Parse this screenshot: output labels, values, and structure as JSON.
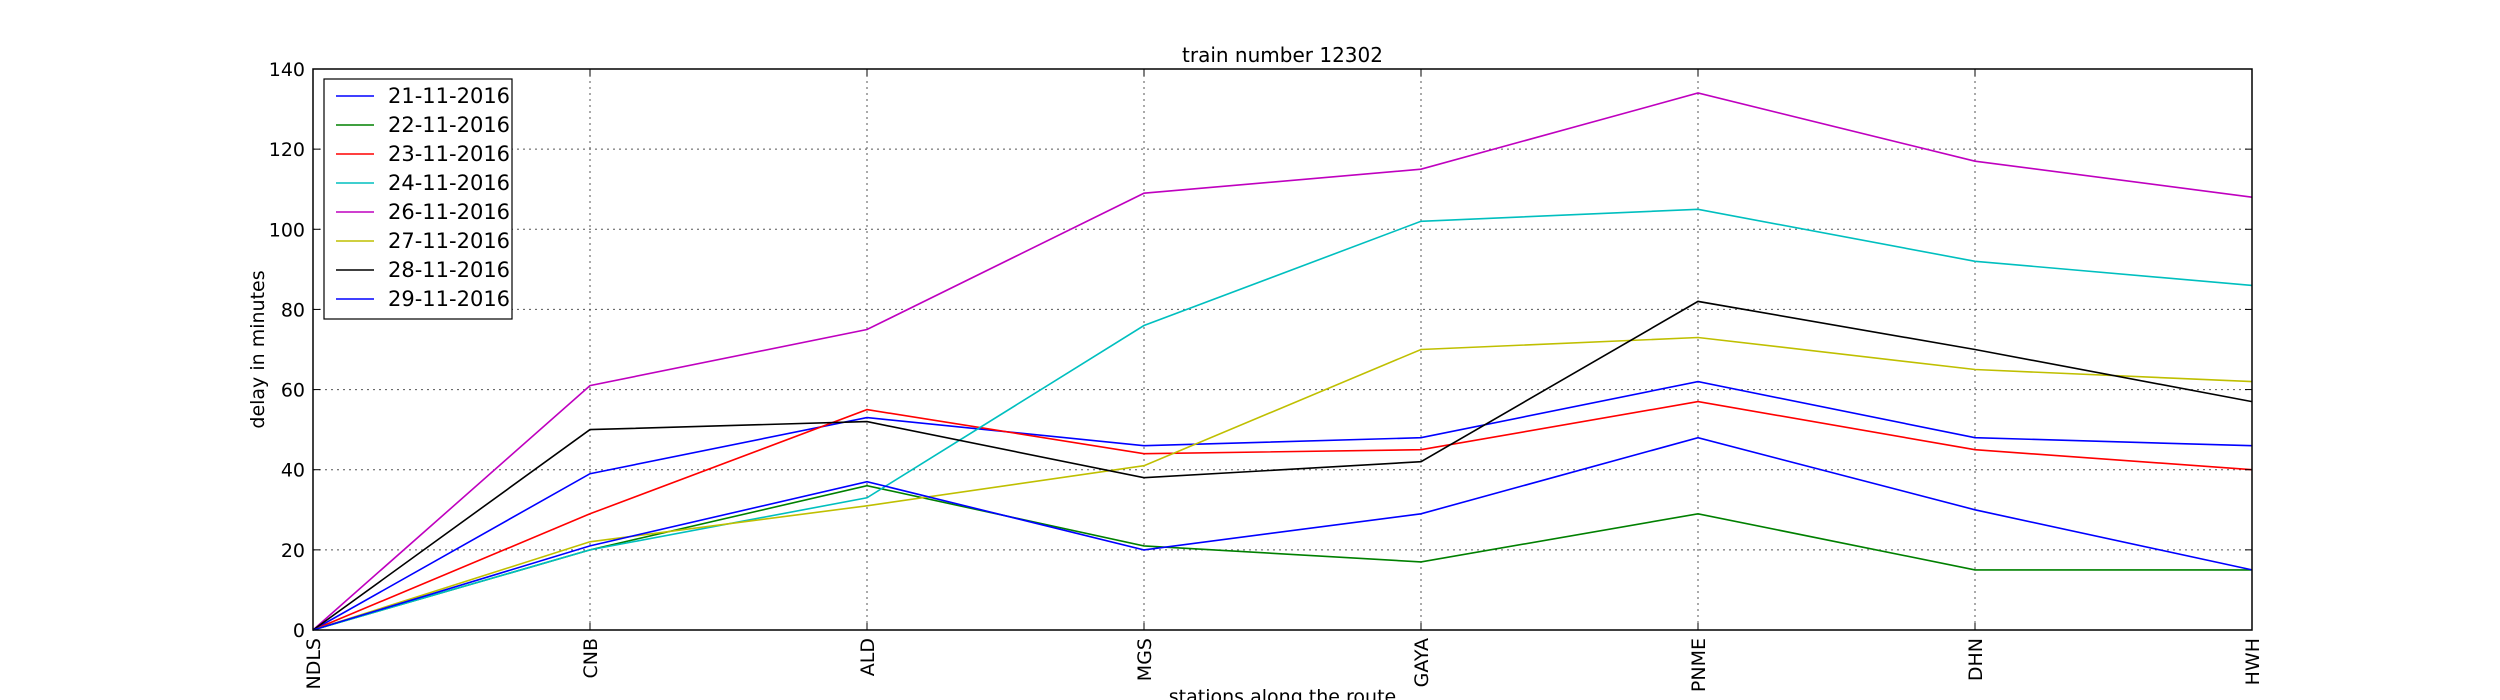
{
  "chart_data": {
    "type": "line",
    "title": "train number 12302",
    "xlabel": "stations along the route",
    "ylabel": "delay in minutes",
    "categories": [
      "NDLS",
      "CNB",
      "ALD",
      "MGS",
      "GAYA",
      "PNME",
      "DHN",
      "HWH"
    ],
    "ylim": [
      0,
      140
    ],
    "yticks": [
      0,
      20,
      40,
      60,
      80,
      100,
      120,
      140
    ],
    "grid": true,
    "legend_position": "top-left",
    "series": [
      {
        "name": "21-11-2016",
        "color": "#0000ff",
        "values": [
          0,
          39,
          53,
          46,
          48,
          62,
          48,
          46
        ]
      },
      {
        "name": "22-11-2016",
        "color": "#008000",
        "values": [
          0,
          20,
          36,
          21,
          17,
          29,
          15,
          15
        ]
      },
      {
        "name": "23-11-2016",
        "color": "#ff0000",
        "values": [
          0,
          29,
          55,
          44,
          45,
          57,
          45,
          40
        ]
      },
      {
        "name": "24-11-2016",
        "color": "#00bfbf",
        "values": [
          0,
          20,
          33,
          76,
          102,
          105,
          92,
          86
        ]
      },
      {
        "name": "26-11-2016",
        "color": "#bf00bf",
        "values": [
          0,
          61,
          75,
          109,
          115,
          134,
          117,
          108
        ]
      },
      {
        "name": "27-11-2016",
        "color": "#bfbf00",
        "values": [
          0,
          22,
          31,
          41,
          70,
          73,
          65,
          62
        ]
      },
      {
        "name": "28-11-2016",
        "color": "#000000",
        "values": [
          0,
          50,
          52,
          38,
          42,
          82,
          70,
          57
        ]
      },
      {
        "name": "29-11-2016",
        "color": "#0000ff",
        "values": [
          0,
          21,
          37,
          20,
          29,
          48,
          30,
          15
        ]
      }
    ]
  }
}
